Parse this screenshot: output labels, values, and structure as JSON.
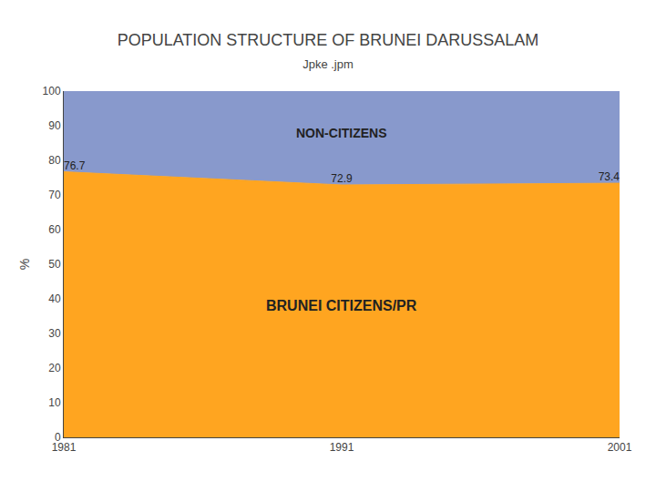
{
  "chart_data": {
    "type": "area",
    "title": "POPULATION STRUCTURE OF BRUNEI DARUSSALAM",
    "subtitle": "Jpke .jpm",
    "ylabel": "%",
    "x": [
      1981,
      1991,
      2001
    ],
    "stacked": true,
    "series": [
      {
        "name": "BRUNEI CITIZENS/PR",
        "color": "#FFA520",
        "values": [
          76.7,
          72.9,
          73.4
        ],
        "data_labels": true
      },
      {
        "name": "NON-CITIZENS",
        "color": "#8899CC",
        "values": [
          23.3,
          27.1,
          26.6
        ]
      }
    ],
    "xlim": [
      1981,
      2001
    ],
    "xticks": [
      1981,
      1991,
      2001
    ],
    "ylim": [
      0,
      100
    ],
    "yticks": [
      0,
      10,
      20,
      30,
      40,
      50,
      60,
      70,
      80,
      90,
      100
    ],
    "grid": false
  }
}
